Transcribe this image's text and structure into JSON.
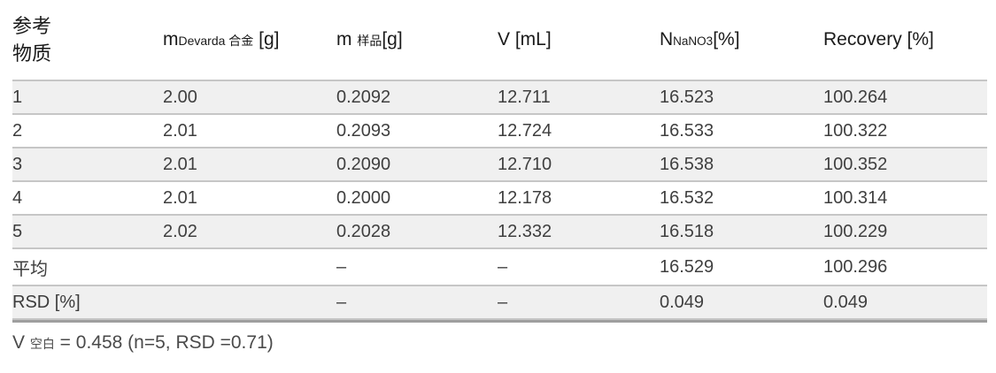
{
  "table": {
    "header": {
      "col1_line1": "参考",
      "col1_line2": "物质",
      "col2": {
        "base": "m",
        "sub": "Devarda 合金",
        "unit": " [g]"
      },
      "col3": {
        "base": "m ",
        "sub": "样品",
        "unit": "[g]"
      },
      "col4": {
        "label": "V [mL]"
      },
      "col5": {
        "base": "N",
        "sub": "NaNO3",
        "unit": "[%]"
      },
      "col6": {
        "label": "Recovery [%]"
      }
    },
    "rows": [
      {
        "cells": [
          "1",
          "2.00",
          "0.2092",
          "12.711",
          "16.523",
          "100.264"
        ]
      },
      {
        "cells": [
          "2",
          "2.01",
          "0.2093",
          "12.724",
          "16.533",
          "100.322"
        ]
      },
      {
        "cells": [
          "3",
          "2.01",
          "0.2090",
          "12.710",
          "16.538",
          "100.352"
        ]
      },
      {
        "cells": [
          "4",
          "2.01",
          "0.2000",
          "12.178",
          "16.532",
          "100.314"
        ]
      },
      {
        "cells": [
          "5",
          "2.02",
          "0.2028",
          "12.332",
          "16.518",
          "100.229"
        ]
      },
      {
        "cells": [
          "平均",
          "",
          "–",
          "–",
          "16.529",
          "100.296"
        ]
      },
      {
        "cells": [
          "RSD [%]",
          "",
          "–",
          "–",
          "0.049",
          "0.049"
        ]
      }
    ],
    "colors": {
      "row_shading": "#f0f0f0",
      "row_border": "#c6c6c6",
      "closing_rule": "#9e9e9e",
      "header_text": "#1a1a1a",
      "body_text": "#3f3f3f"
    }
  },
  "footnote": {
    "base": "V ",
    "sub": "空白",
    "rest": " = 0.458 (n=5, RSD =0.71)"
  }
}
